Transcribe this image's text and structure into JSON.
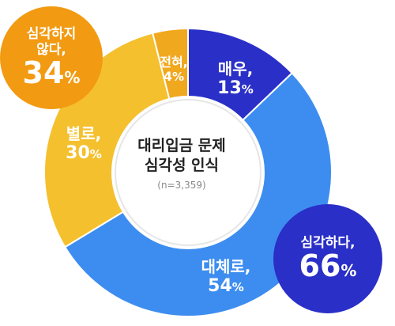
{
  "chart_data": {
    "type": "pie",
    "title": "대리입금 문제 심각성 인식",
    "title_line1": "대리입금 문제",
    "title_line2": "심각성 인식",
    "sample_note": "(n=3,359)",
    "slices": [
      {
        "label": "매우,",
        "value": 13,
        "color": "#2a2fc7"
      },
      {
        "label": "대체로,",
        "value": 54,
        "color": "#3d8df0"
      },
      {
        "label": "별로,",
        "value": 30,
        "color": "#f5c02e"
      },
      {
        "label": "전혀,",
        "value": 4,
        "color": "#f0a81e"
      }
    ],
    "groups": [
      {
        "line1": "심각하다,",
        "line2": "",
        "value": 66,
        "color": "#2a2fc7"
      },
      {
        "line1": "심각하지",
        "line2": "않다,",
        "value": 34,
        "color": "#f29a11"
      }
    ],
    "unit": "%"
  }
}
